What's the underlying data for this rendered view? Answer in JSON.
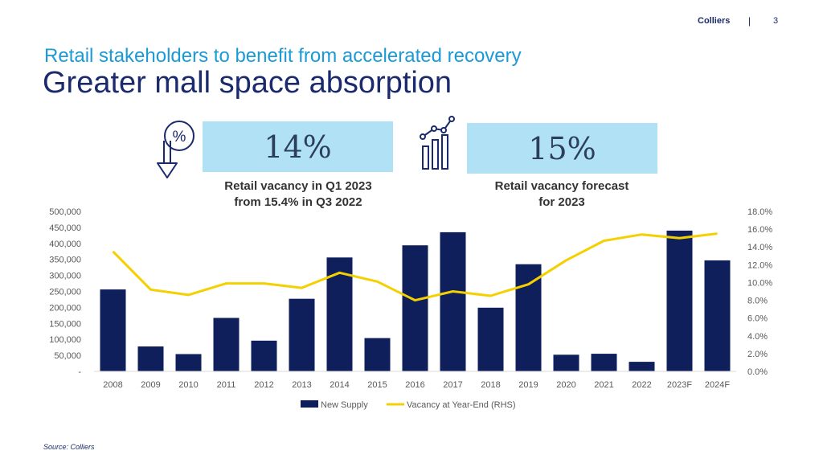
{
  "header": {
    "brand": "Colliers",
    "separator": "|",
    "page_number": "3"
  },
  "subtitle": "Retail stakeholders to benefit from accelerated recovery",
  "title": "Greater mall space absorption",
  "kpis": [
    {
      "value": "14%",
      "caption": "Retail vacancy in Q1 2023\nfrom 15.4% in Q3 2022",
      "icon": "percent-down-icon"
    },
    {
      "value": "15%",
      "caption": "Retail vacancy forecast\nfor 2023",
      "icon": "growth-chart-icon"
    }
  ],
  "source": "Source: Colliers",
  "colors": {
    "bar": "#0f1f5c",
    "line": "#f5d000",
    "kpi_box": "#b0e1f4",
    "subtitle": "#1b9ad6",
    "title": "#1a2a6c"
  },
  "chart_data": {
    "type": "bar",
    "categories": [
      "2008",
      "2009",
      "2010",
      "2011",
      "2012",
      "2013",
      "2014",
      "2015",
      "2016",
      "2017",
      "2018",
      "2019",
      "2020",
      "2021",
      "2022",
      "2023F",
      "2024F"
    ],
    "series": [
      {
        "name": "New Supply",
        "type": "bar",
        "axis": "left",
        "values": [
          256000,
          78000,
          54000,
          167000,
          96000,
          227000,
          356000,
          104000,
          394000,
          435000,
          199000,
          335000,
          52000,
          55000,
          30000,
          440000,
          347000
        ]
      },
      {
        "name": "Vacancy at Year-End (RHS)",
        "type": "line",
        "axis": "right",
        "values": [
          13.5,
          9.2,
          8.6,
          9.9,
          9.9,
          9.4,
          11.1,
          10.1,
          8.0,
          9.0,
          8.5,
          9.8,
          12.5,
          14.7,
          15.4,
          15.0,
          15.5
        ]
      }
    ],
    "y_left": {
      "ylim": [
        0,
        500000
      ],
      "ticks": [
        "-",
        "50,000",
        "100,000",
        "150,000",
        "200,000",
        "250,000",
        "300,000",
        "350,000",
        "400,000",
        "450,000",
        "500,000"
      ]
    },
    "y_right": {
      "ylim": [
        0,
        18
      ],
      "ticks": [
        "0.0%",
        "2.0%",
        "4.0%",
        "6.0%",
        "8.0%",
        "10.0%",
        "12.0%",
        "14.0%",
        "16.0%",
        "18.0%"
      ]
    },
    "grid": false,
    "legend_position": "bottom"
  }
}
